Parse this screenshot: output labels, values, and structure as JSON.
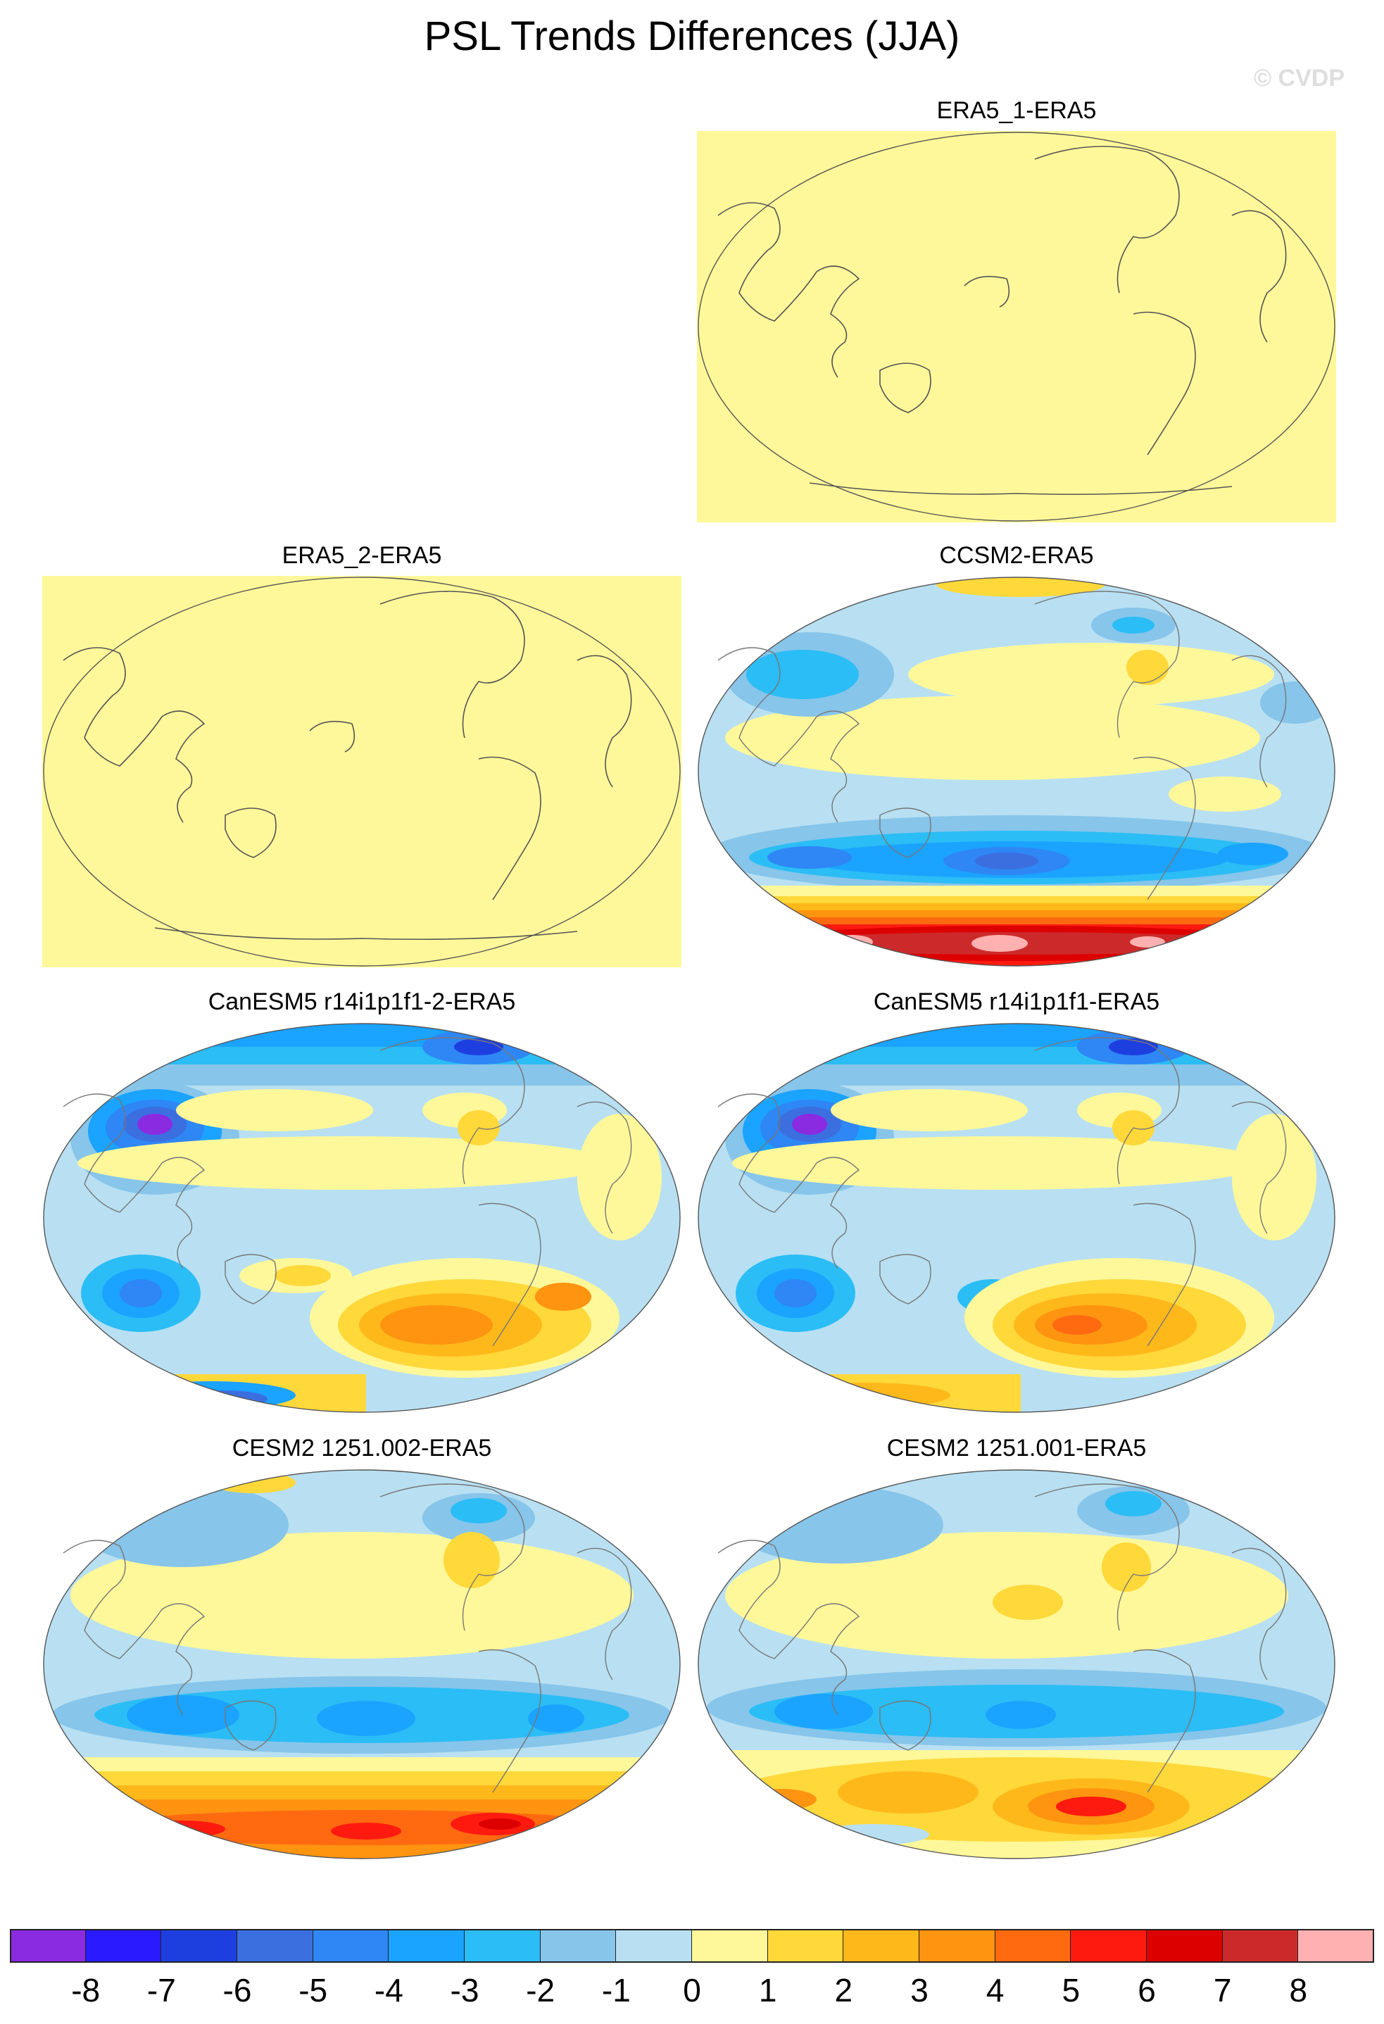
{
  "title": "PSL Trends Differences (JJA)",
  "credit": "© CVDP",
  "panels": [
    {
      "id": "era5-1",
      "title": "ERA5_1-ERA5",
      "style": "flat"
    },
    {
      "id": "era5-2",
      "title": "ERA5_2-ERA5",
      "style": "flat"
    },
    {
      "id": "ccsm2",
      "title": "CCSM2-ERA5",
      "style": "contour"
    },
    {
      "id": "canesm5-2",
      "title": "CanESM5 r14i1p1f1-2-ERA5",
      "style": "contour"
    },
    {
      "id": "canesm5-1",
      "title": "CanESM5 r14i1p1f1-ERA5",
      "style": "contour"
    },
    {
      "id": "cesm2-002",
      "title": "CESM2 1251.002-ERA5",
      "style": "contour"
    },
    {
      "id": "cesm2-001",
      "title": "CESM2 1251.001-ERA5",
      "style": "contour"
    }
  ],
  "colorbar": {
    "colors": [
      "#8a2be2",
      "#2a1aff",
      "#1e3fe0",
      "#3b6fe0",
      "#2f86f5",
      "#1aa3ff",
      "#2bbdf5",
      "#87c5ea",
      "#b8e0f2",
      "#fff89a",
      "#ffd83a",
      "#ffb81a",
      "#ff9410",
      "#ff6a10",
      "#ff1a10",
      "#dd0000",
      "#cc2a2a",
      "#ffb0b0"
    ],
    "labels": [
      "-8",
      "-7",
      "-6",
      "-5",
      "-4",
      "-3",
      "-2",
      "-1",
      "0",
      "1",
      "2",
      "3",
      "4",
      "5",
      "6",
      "7",
      "8"
    ]
  }
}
